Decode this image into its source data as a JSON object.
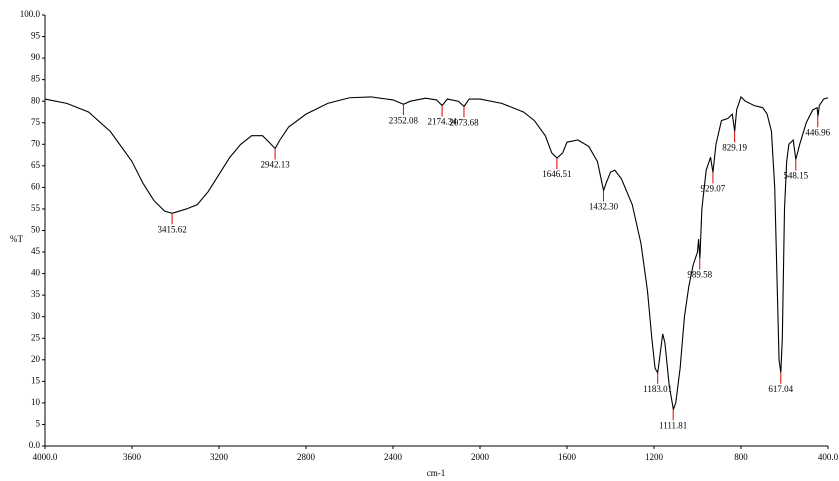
{
  "chart_data": {
    "type": "line",
    "x_label": "cm-1",
    "y_label": "%T",
    "xlim": [
      4000,
      400
    ],
    "ylim": [
      0,
      100
    ],
    "xticks": [
      {
        "value": 4000,
        "label": "4000.0"
      },
      3600,
      3200,
      2800,
      2400,
      2000,
      1600,
      1200,
      800,
      {
        "value": 400,
        "label": "400.0"
      }
    ],
    "yticks": [
      {
        "value": 0,
        "label": "0.0"
      },
      5,
      10,
      15,
      20,
      25,
      30,
      35,
      40,
      45,
      50,
      55,
      60,
      65,
      70,
      75,
      80,
      85,
      90,
      95,
      {
        "value": 100,
        "label": "100.0"
      }
    ],
    "color": "#000000",
    "peak_color": "#e00000",
    "x": [
      4000,
      3900,
      3800,
      3700,
      3600,
      3550,
      3500,
      3450,
      3415,
      3350,
      3300,
      3250,
      3200,
      3150,
      3100,
      3050,
      3000,
      2970,
      2942,
      2920,
      2880,
      2800,
      2700,
      2600,
      2500,
      2400,
      2352,
      2320,
      2250,
      2200,
      2174,
      2150,
      2100,
      2073,
      2050,
      2000,
      1900,
      1800,
      1750,
      1700,
      1670,
      1646,
      1620,
      1600,
      1550,
      1500,
      1460,
      1432,
      1420,
      1400,
      1380,
      1350,
      1300,
      1260,
      1230,
      1210,
      1195,
      1183,
      1170,
      1160,
      1150,
      1130,
      1111,
      1100,
      1080,
      1060,
      1040,
      1020,
      1000,
      995,
      989,
      980,
      960,
      940,
      929,
      915,
      890,
      860,
      840,
      829,
      820,
      800,
      780,
      740,
      700,
      680,
      660,
      645,
      635,
      625,
      617,
      610,
      600,
      590,
      580,
      560,
      548,
      530,
      500,
      470,
      450,
      446,
      440,
      420,
      400
    ],
    "values": [
      80.5,
      79.5,
      77.5,
      73,
      66,
      61,
      57,
      54.5,
      54,
      55,
      56,
      59,
      63,
      67,
      70,
      72,
      72,
      70.5,
      69,
      71,
      74,
      77,
      79.5,
      80.8,
      81,
      80.3,
      79.3,
      80,
      80.7,
      80.3,
      79,
      80.5,
      80,
      78.8,
      80.5,
      80.5,
      79.5,
      77.5,
      75.5,
      72,
      68,
      66.8,
      68,
      70.5,
      71,
      69.5,
      66,
      59.3,
      61,
      63.5,
      64,
      62,
      56,
      47,
      36,
      25,
      18,
      17,
      22,
      26,
      24,
      14,
      8.5,
      10,
      18,
      30,
      37,
      42,
      45,
      48,
      43.5,
      55,
      64,
      67,
      63.5,
      70,
      75.5,
      76,
      77,
      73,
      78,
      81,
      80,
      79,
      78.5,
      77,
      73,
      60,
      40,
      20,
      17,
      25,
      55,
      66,
      70,
      71,
      66.5,
      70,
      75,
      78,
      78.5,
      76.5,
      79,
      80.5,
      80.8
    ],
    "peaks": [
      {
        "x": 3415.62,
        "y": 54
      },
      {
        "x": 2942.13,
        "y": 69
      },
      {
        "x": 2352.08,
        "y": 79.3
      },
      {
        "x": 2174.34,
        "y": 79
      },
      {
        "x": 2073.68,
        "y": 78.8
      },
      {
        "x": 1646.51,
        "y": 66.8
      },
      {
        "x": {
          "value": 1432.3,
          "label": "1432.30"
        },
        "y": 59.3
      },
      {
        "x": 1183.01,
        "y": 17
      },
      {
        "x": 1111.81,
        "y": 8.5
      },
      {
        "x": 989.58,
        "y": 43.5
      },
      {
        "x": 929.07,
        "y": 63.5
      },
      {
        "x": 829.19,
        "y": 73
      },
      {
        "x": 617.04,
        "y": 17
      },
      {
        "x": 548.15,
        "y": 66.5
      },
      {
        "x": 446.96,
        "y": 76.5
      }
    ]
  }
}
